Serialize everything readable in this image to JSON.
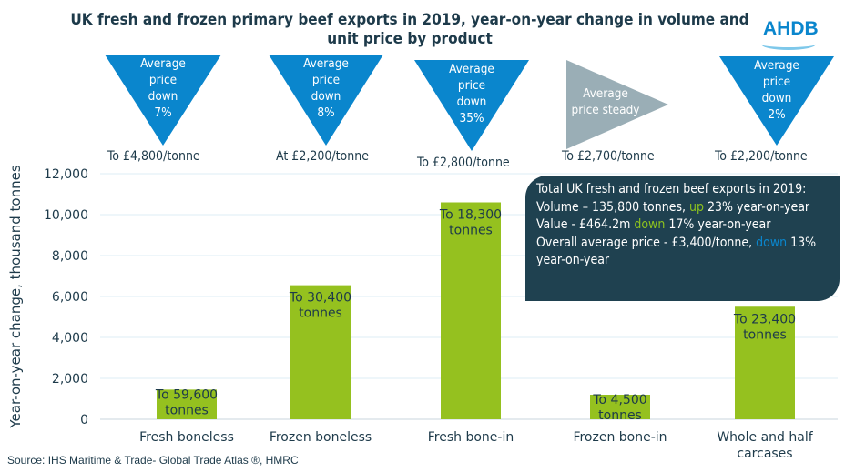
{
  "chart_data": {
    "type": "bar",
    "title": "UK fresh and frozen primary beef exports in 2019, year-on-year change in volume and unit price by product",
    "ylabel": "Year-on-year change, thousand tonnes",
    "xlabel": "",
    "ylim": [
      0,
      12000
    ],
    "yticks": [
      "0",
      "2,000",
      "4,000",
      "6,000",
      "8,000",
      "10,000",
      "12,000"
    ],
    "ytick_values": [
      0,
      2000,
      4000,
      6000,
      8000,
      10000,
      12000
    ],
    "grid": true,
    "categories": [
      "Fresh boneless",
      "Frozen boneless",
      "Fresh bone-in",
      "Frozen bone-in",
      "Whole and half carcases"
    ],
    "values": [
      1450,
      6550,
      10600,
      1200,
      5500
    ],
    "data_labels": [
      [
        "To 59,600",
        "tonnes"
      ],
      [
        "To 30,400",
        "tonnes"
      ],
      [
        "To 18,300",
        "tonnes"
      ],
      [
        "To 4,500",
        "tonnes"
      ],
      [
        "To 23,400",
        "tonnes"
      ]
    ],
    "bar_color": "#95c11f"
  },
  "logo": "AHDB",
  "price_indicators": [
    {
      "lines": [
        "Average",
        "price",
        "down",
        "7%"
      ],
      "direction": "down",
      "price": "To £4,800/tonne"
    },
    {
      "lines": [
        "Average",
        "price",
        "down",
        "8%"
      ],
      "direction": "down",
      "price": "At £2,200/tonne"
    },
    {
      "lines": [
        "Average",
        "price",
        "down",
        "35%"
      ],
      "direction": "down",
      "price": "To £2,800/tonne"
    },
    {
      "lines": [
        "Average",
        "price steady"
      ],
      "direction": "steady",
      "price": "To £2,700/tonne"
    },
    {
      "lines": [
        "Average",
        "price",
        "down",
        "2%"
      ],
      "direction": "down",
      "price": "To £2,200/tonne"
    }
  ],
  "colors": {
    "down": "#0a86cd",
    "steady": "#9aaeb6",
    "note_bg": "#1f4150",
    "up_text": "#8dc21f"
  },
  "note": {
    "line1": "Total UK fresh and frozen beef exports in 2019:",
    "vol_a": "Volume – 135,800 tonnes, ",
    "vol_up": "up",
    "vol_b": " 23% year-on-year",
    "val_a": "Value - £464.2m ",
    "val_down": "down",
    "val_b": " 17% year-on-year",
    "price_a": "Overall average price - £3,400/tonne, ",
    "price_down": "down",
    "price_b": " 13% year-on-year"
  },
  "source": "Source: IHS Maritime & Trade- Global Trade Atlas ®, HMRC"
}
